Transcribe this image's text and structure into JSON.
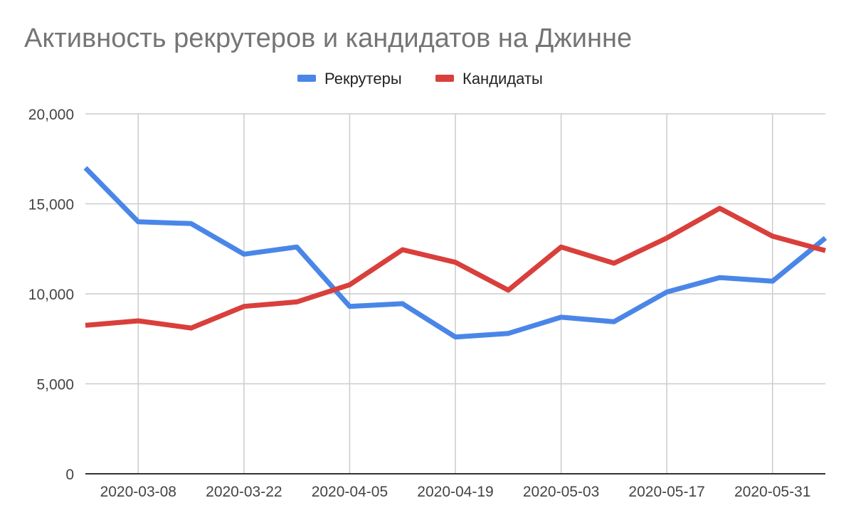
{
  "chart_data": {
    "type": "line",
    "title": "Активность рекрутеров и кандидатов на Джинне",
    "xlabel": "",
    "ylabel": "",
    "x": [
      "2020-03-01",
      "2020-03-08",
      "2020-03-15",
      "2020-03-22",
      "2020-03-29",
      "2020-04-05",
      "2020-04-12",
      "2020-04-19",
      "2020-04-26",
      "2020-05-03",
      "2020-05-10",
      "2020-05-17",
      "2020-05-24",
      "2020-05-31",
      "2020-06-07"
    ],
    "x_tick_labels": [
      "2020-03-08",
      "2020-03-22",
      "2020-04-05",
      "2020-04-19",
      "2020-05-03",
      "2020-05-17",
      "2020-05-31"
    ],
    "ylim": [
      0,
      20000
    ],
    "y_ticks": [
      0,
      5000,
      10000,
      15000,
      20000
    ],
    "y_tick_labels": [
      "0",
      "5,000",
      "10,000",
      "15,000",
      "20,000"
    ],
    "grid": true,
    "legend_position": "top-center",
    "series": [
      {
        "name": "Рекрутеры",
        "color": "#4a86e8",
        "values": [
          17000,
          14000,
          13900,
          12200,
          12600,
          9300,
          9450,
          7600,
          7800,
          8700,
          8450,
          10100,
          10900,
          10700,
          13100
        ]
      },
      {
        "name": "Кандидаты",
        "color": "#d93f3b",
        "values": [
          8250,
          8500,
          8100,
          9300,
          9550,
          10500,
          12450,
          11750,
          10200,
          12600,
          11700,
          13100,
          14750,
          13200,
          12400
        ]
      }
    ]
  }
}
